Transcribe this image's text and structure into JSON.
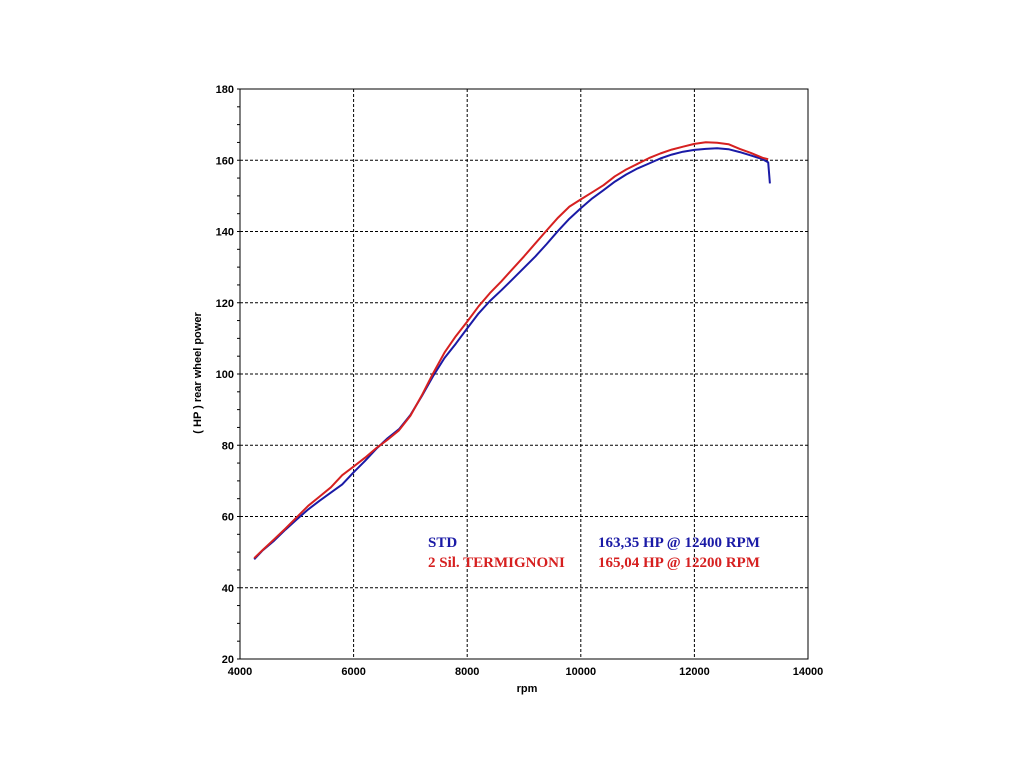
{
  "chart_data": {
    "type": "line",
    "xlabel": "rpm",
    "ylabel": "( HP )  rear  wheel  power",
    "xlim": [
      4000,
      14000
    ],
    "ylim": [
      20,
      180
    ],
    "x_ticks": [
      "4000",
      "6000",
      "8000",
      "10000",
      "12000",
      "14000"
    ],
    "y_ticks": [
      "20",
      "40",
      "60",
      "80",
      "100",
      "120",
      "140",
      "160",
      "180"
    ],
    "grid": true,
    "series": [
      {
        "name": "STD",
        "peak_label": "163,35 HP @ 12400 RPM",
        "color": "#1a1aa6",
        "x": [
          4250,
          4400,
          4600,
          4800,
          5000,
          5200,
          5400,
          5600,
          5800,
          6000,
          6200,
          6400,
          6600,
          6800,
          7000,
          7200,
          7400,
          7600,
          7800,
          8000,
          8200,
          8400,
          8600,
          8800,
          9000,
          9200,
          9400,
          9600,
          9800,
          10000,
          10200,
          10400,
          10600,
          10800,
          11000,
          11200,
          11400,
          11600,
          11800,
          12000,
          12200,
          12400,
          12600,
          12800,
          13000,
          13200,
          13300,
          13330
        ],
        "y": [
          48,
          50.5,
          53.2,
          56.3,
          59.2,
          62,
          64.4,
          66.7,
          69,
          72.4,
          75.6,
          79,
          82,
          84.5,
          88.5,
          93.8,
          99.4,
          104.5,
          108.5,
          112.8,
          117,
          120.5,
          123.5,
          126.6,
          129.8,
          133,
          136.5,
          140.2,
          143.6,
          146.5,
          149.3,
          151.6,
          154,
          156,
          157.7,
          159.1,
          160.5,
          161.6,
          162.4,
          162.9,
          163.2,
          163.35,
          163.1,
          162.3,
          161.3,
          160.3,
          159.4,
          153.5
        ]
      },
      {
        "name": "2 Sil. TERMIGNONI",
        "peak_label": "165,04 HP @ 12200 RPM",
        "color": "#d62020",
        "x": [
          4250,
          4400,
          4600,
          4800,
          5000,
          5200,
          5400,
          5600,
          5800,
          6000,
          6200,
          6400,
          6600,
          6800,
          7000,
          7200,
          7400,
          7600,
          7800,
          8000,
          8200,
          8400,
          8600,
          8800,
          9000,
          9200,
          9400,
          9600,
          9800,
          10000,
          10200,
          10400,
          10600,
          10800,
          11000,
          11200,
          11400,
          11600,
          11800,
          12000,
          12200,
          12400,
          12600,
          12800,
          13000,
          13200,
          13300
        ],
        "y": [
          48.3,
          50.6,
          53.6,
          56.6,
          59.8,
          63,
          65.6,
          68.2,
          71.6,
          74,
          76.5,
          79.2,
          81.6,
          84.2,
          88.3,
          94,
          100.2,
          106,
          110.6,
          114.7,
          119,
          122.7,
          126,
          129.5,
          133,
          136.7,
          140.3,
          143.9,
          147,
          149,
          151,
          153,
          155.5,
          157.4,
          159,
          160.6,
          161.9,
          163,
          163.8,
          164.6,
          165.04,
          164.9,
          164.5,
          163.2,
          162,
          160.7,
          160.3
        ]
      }
    ]
  }
}
